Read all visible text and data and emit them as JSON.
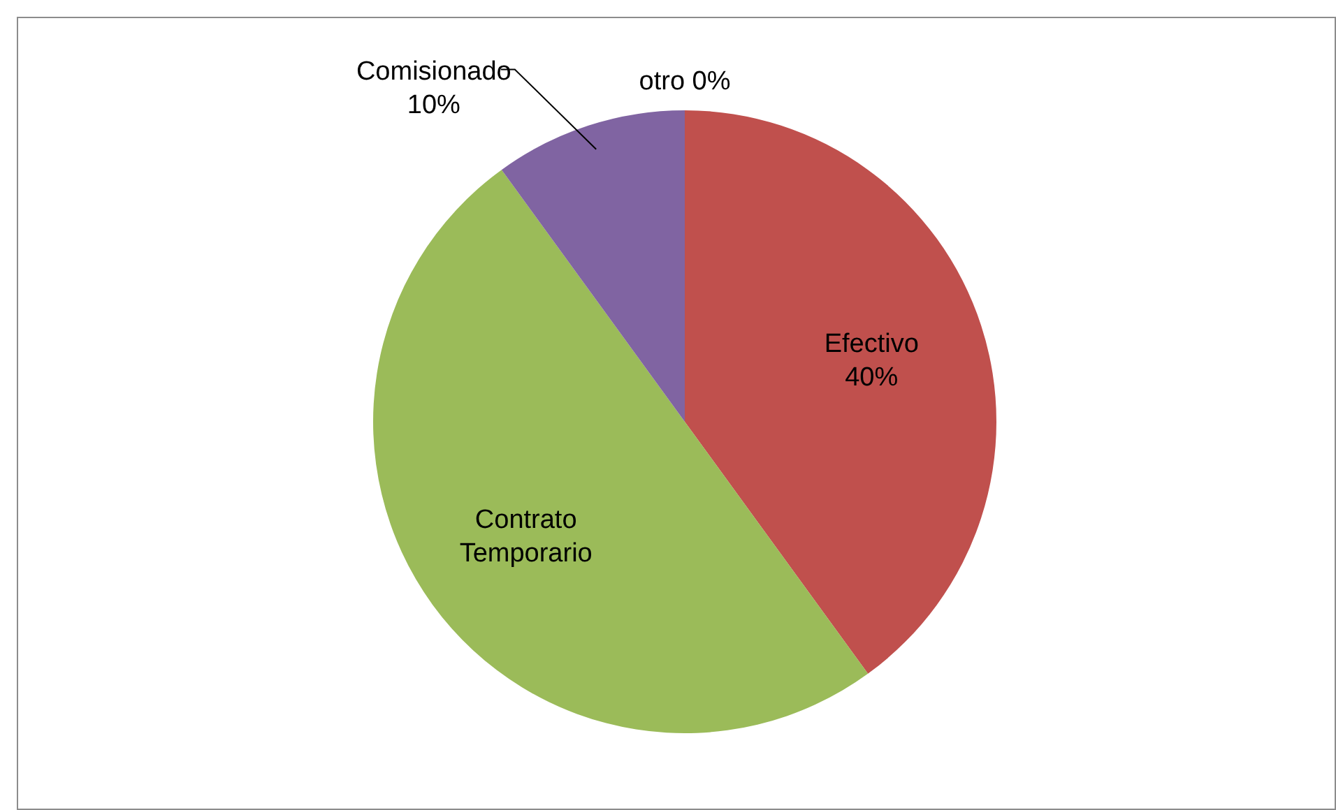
{
  "chart_data": {
    "type": "pie",
    "categories": [
      "Efectivo",
      "Contrato Temporario",
      "Comisionado",
      "otro"
    ],
    "values": [
      40,
      50,
      10,
      0
    ],
    "colors": [
      "#c0504d",
      "#9bbb59",
      "#8064a2",
      "#4bacc6"
    ],
    "value_labels": [
      "40%",
      null,
      "10%",
      "0%"
    ],
    "legend": false
  }
}
